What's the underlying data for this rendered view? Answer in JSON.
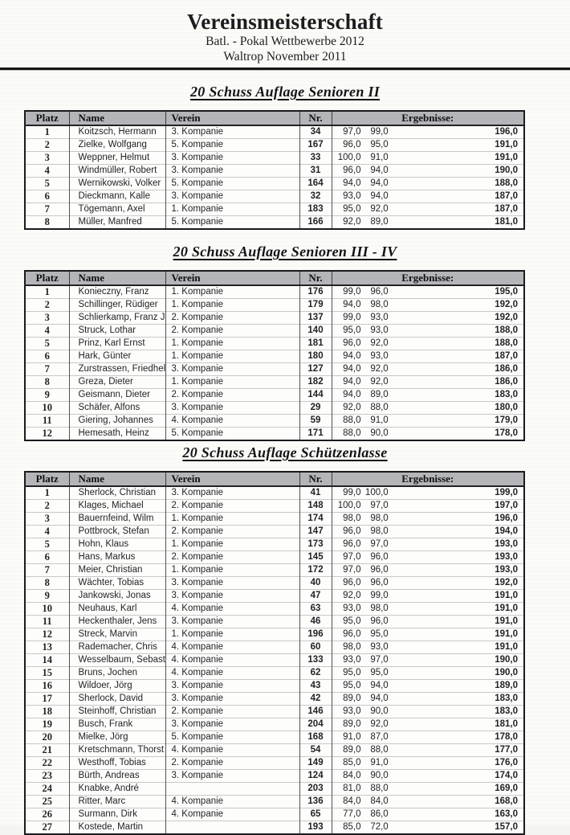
{
  "header": {
    "title": "Vereinsmeisterschaft",
    "subtitle1": "Batl. - Pokal Wettbewerbe 2012",
    "subtitle2": "Waltrop November 2011"
  },
  "columns": {
    "platz": "Platz",
    "name": "Name",
    "verein": "Verein",
    "nr": "Nr.",
    "ergebnisse": "Ergebnisse:"
  },
  "colors": {
    "table_header_bg": "#b4b5b9",
    "table_border": "#1b1b1e",
    "rule": "#161616"
  },
  "sections": [
    {
      "title": "20 Schuss Auflage Senioren II",
      "rows": [
        {
          "platz": "1",
          "name": "Koitzsch, Hermann",
          "verein": "3. Kompanie",
          "nr": "34",
          "s1": "97,0",
          "s2": "99,0",
          "total": "196,0"
        },
        {
          "platz": "2",
          "name": "Zielke, Wolfgang",
          "verein": "5. Kompanie",
          "nr": "167",
          "s1": "96,0",
          "s2": "95,0",
          "total": "191,0"
        },
        {
          "platz": "3",
          "name": "Weppner, Helmut",
          "verein": "3. Kompanie",
          "nr": "33",
          "s1": "100,0",
          "s2": "91,0",
          "total": "191,0"
        },
        {
          "platz": "4",
          "name": "Windmüller, Robert",
          "verein": "3. Kompanie",
          "nr": "31",
          "s1": "96,0",
          "s2": "94,0",
          "total": "190,0"
        },
        {
          "platz": "5",
          "name": "Wernikowski, Volker",
          "verein": "5. Kompanie",
          "nr": "164",
          "s1": "94,0",
          "s2": "94,0",
          "total": "188,0"
        },
        {
          "platz": "6",
          "name": "Dieckmann, Kalle",
          "verein": "3. Kompanie",
          "nr": "32",
          "s1": "93,0",
          "s2": "94,0",
          "total": "187,0"
        },
        {
          "platz": "7",
          "name": "Tögemann, Axel",
          "verein": "1. Kompanie",
          "nr": "183",
          "s1": "95,0",
          "s2": "92,0",
          "total": "187,0"
        },
        {
          "platz": "8",
          "name": "Müller, Manfred",
          "verein": "5. Kompanie",
          "nr": "166",
          "s1": "92,0",
          "s2": "89,0",
          "total": "181,0"
        }
      ]
    },
    {
      "title": "20 Schuss Auflage Senioren III - IV",
      "rows": [
        {
          "platz": "1",
          "name": "Konieczny, Franz",
          "verein": "1. Kompanie",
          "nr": "176",
          "s1": "99,0",
          "s2": "96,0",
          "total": "195,0"
        },
        {
          "platz": "2",
          "name": "Schillinger, Rüdiger",
          "verein": "1. Kompanie",
          "nr": "179",
          "s1": "94,0",
          "s2": "98,0",
          "total": "192,0"
        },
        {
          "platz": "3",
          "name": "Schlierkamp, Franz J",
          "verein": "2. Kompanie",
          "nr": "137",
          "s1": "99,0",
          "s2": "93,0",
          "total": "192,0"
        },
        {
          "platz": "4",
          "name": "Struck, Lothar",
          "verein": "2. Kompanie",
          "nr": "140",
          "s1": "95,0",
          "s2": "93,0",
          "total": "188,0"
        },
        {
          "platz": "5",
          "name": "Prinz, Karl Ernst",
          "verein": "1. Kompanie",
          "nr": "181",
          "s1": "96,0",
          "s2": "92,0",
          "total": "188,0"
        },
        {
          "platz": "6",
          "name": "Hark, Günter",
          "verein": "1. Kompanie",
          "nr": "180",
          "s1": "94,0",
          "s2": "93,0",
          "total": "187,0"
        },
        {
          "platz": "7",
          "name": "Zurstrassen, Friedhel",
          "verein": "3. Kompanie",
          "nr": "127",
          "s1": "94,0",
          "s2": "92,0",
          "total": "186,0"
        },
        {
          "platz": "8",
          "name": "Greza, Dieter",
          "verein": "1. Kompanie",
          "nr": "182",
          "s1": "94,0",
          "s2": "92,0",
          "total": "186,0"
        },
        {
          "platz": "9",
          "name": "Geismann, Dieter",
          "verein": "2. Kompanie",
          "nr": "144",
          "s1": "94,0",
          "s2": "89,0",
          "total": "183,0"
        },
        {
          "platz": "10",
          "name": "Schäfer, Alfons",
          "verein": "3. Kompanie",
          "nr": "29",
          "s1": "92,0",
          "s2": "88,0",
          "total": "180,0"
        },
        {
          "platz": "11",
          "name": "Giering, Johannes",
          "verein": "4. Kompanie",
          "nr": "59",
          "s1": "88,0",
          "s2": "91,0",
          "total": "179,0"
        },
        {
          "platz": "12",
          "name": "Hemesath, Heinz",
          "verein": "5. Kompanie",
          "nr": "171",
          "s1": "88,0",
          "s2": "90,0",
          "total": "178,0"
        }
      ]
    },
    {
      "title": "20 Schuss Auflage Schützenlasse",
      "rows": [
        {
          "platz": "1",
          "name": "Sherlock, Christian",
          "verein": "3. Kompanie",
          "nr": "41",
          "s1": "99,0",
          "s2": "100,0",
          "total": "199,0"
        },
        {
          "platz": "2",
          "name": "Klages, Michael",
          "verein": "2. Kompanie",
          "nr": "148",
          "s1": "100,0",
          "s2": "97,0",
          "total": "197,0"
        },
        {
          "platz": "3",
          "name": "Bauernfeind, Wilm",
          "verein": "1. Kompanie",
          "nr": "174",
          "s1": "98,0",
          "s2": "98,0",
          "total": "196,0"
        },
        {
          "platz": "4",
          "name": "Pottbrock, Stefan",
          "verein": "2. Kompanie",
          "nr": "147",
          "s1": "96,0",
          "s2": "98,0",
          "total": "194,0"
        },
        {
          "platz": "5",
          "name": "Hohn, Klaus",
          "verein": "1. Kompanie",
          "nr": "173",
          "s1": "96,0",
          "s2": "97,0",
          "total": "193,0"
        },
        {
          "platz": "6",
          "name": "Hans, Markus",
          "verein": "2. Kompanie",
          "nr": "145",
          "s1": "97,0",
          "s2": "96,0",
          "total": "193,0"
        },
        {
          "platz": "7",
          "name": "Meier, Christian",
          "verein": "1. Kompanie",
          "nr": "172",
          "s1": "97,0",
          "s2": "96,0",
          "total": "193,0"
        },
        {
          "platz": "8",
          "name": "Wächter, Tobias",
          "verein": "3. Kompanie",
          "nr": "40",
          "s1": "96,0",
          "s2": "96,0",
          "total": "192,0"
        },
        {
          "platz": "9",
          "name": "Jankowski, Jonas",
          "verein": "3. Kompanie",
          "nr": "47",
          "s1": "92,0",
          "s2": "99,0",
          "total": "191,0"
        },
        {
          "platz": "10",
          "name": "Neuhaus, Karl",
          "verein": "4. Kompanie",
          "nr": "63",
          "s1": "93,0",
          "s2": "98,0",
          "total": "191,0"
        },
        {
          "platz": "11",
          "name": "Heckenthaler, Jens",
          "verein": "3. Kompanie",
          "nr": "46",
          "s1": "95,0",
          "s2": "96,0",
          "total": "191,0"
        },
        {
          "platz": "12",
          "name": "Streck, Marvin",
          "verein": "1. Kompanie",
          "nr": "196",
          "s1": "96,0",
          "s2": "95,0",
          "total": "191,0"
        },
        {
          "platz": "13",
          "name": "Rademacher, Chris",
          "verein": "4. Kompanie",
          "nr": "60",
          "s1": "98,0",
          "s2": "93,0",
          "total": "191,0"
        },
        {
          "platz": "14",
          "name": "Wesselbaum, Sebast",
          "verein": "4. Kompanie",
          "nr": "133",
          "s1": "93,0",
          "s2": "97,0",
          "total": "190,0"
        },
        {
          "platz": "15",
          "name": "Bruns, Jochen",
          "verein": "4. Kompanie",
          "nr": "62",
          "s1": "95,0",
          "s2": "95,0",
          "total": "190,0"
        },
        {
          "platz": "16",
          "name": "Wildoer, Jörg",
          "verein": "3. Kompanie",
          "nr": "43",
          "s1": "95,0",
          "s2": "94,0",
          "total": "189,0"
        },
        {
          "platz": "17",
          "name": "Sherlock, David",
          "verein": "3. Kompanie",
          "nr": "42",
          "s1": "89,0",
          "s2": "94,0",
          "total": "183,0"
        },
        {
          "platz": "18",
          "name": "Steinhoff, Christian",
          "verein": "2. Kompanie",
          "nr": "146",
          "s1": "93,0",
          "s2": "90,0",
          "total": "183,0"
        },
        {
          "platz": "19",
          "name": "Busch, Frank",
          "verein": "3. Kompanie",
          "nr": "204",
          "s1": "89,0",
          "s2": "92,0",
          "total": "181,0"
        },
        {
          "platz": "20",
          "name": "Mielke, Jörg",
          "verein": "5. Kompanie",
          "nr": "168",
          "s1": "91,0",
          "s2": "87,0",
          "total": "178,0"
        },
        {
          "platz": "21",
          "name": "Kretschmann, Thorst",
          "verein": "4. Kompanie",
          "nr": "54",
          "s1": "89,0",
          "s2": "88,0",
          "total": "177,0"
        },
        {
          "platz": "22",
          "name": "Westhoff, Tobias",
          "verein": "2. Kompanie",
          "nr": "149",
          "s1": "85,0",
          "s2": "91,0",
          "total": "176,0"
        },
        {
          "platz": "23",
          "name": "Bürth, Andreas",
          "verein": "3. Kompanie",
          "nr": "124",
          "s1": "84,0",
          "s2": "90,0",
          "total": "174,0"
        },
        {
          "platz": "24",
          "name": "Knabke, André",
          "verein": "",
          "nr": "203",
          "s1": "81,0",
          "s2": "88,0",
          "total": "169,0"
        },
        {
          "platz": "25",
          "name": "Ritter, Marc",
          "verein": "4. Kompanie",
          "nr": "136",
          "s1": "84,0",
          "s2": "84,0",
          "total": "168,0"
        },
        {
          "platz": "26",
          "name": "Surmann, Dirk",
          "verein": "4. Kompanie",
          "nr": "65",
          "s1": "77,0",
          "s2": "86,0",
          "total": "163,0"
        },
        {
          "platz": "27",
          "name": "Kostede, Martin",
          "verein": "",
          "nr": "193",
          "s1": "85,0",
          "s2": "72,0",
          "total": "157,0"
        }
      ]
    }
  ]
}
